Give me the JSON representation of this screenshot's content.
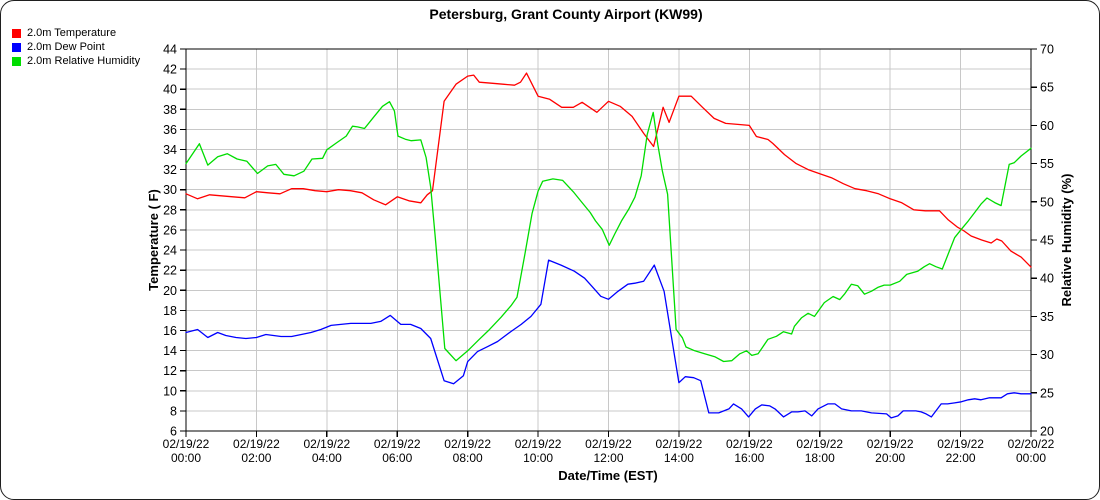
{
  "title": "Petersburg, Grant County Airport (KW99)",
  "legend": {
    "items": [
      {
        "key": "temperature",
        "label": "2.0m Temperature",
        "color": "#ff0000"
      },
      {
        "key": "dew_point",
        "label": "2.0m Dew Point",
        "color": "#0000ff"
      },
      {
        "key": "relative_humidity",
        "label": "2.0m Relative Humidity",
        "color": "#00dd00"
      }
    ]
  },
  "chart_data": {
    "type": "line",
    "title": "Petersburg, Grant County Airport (KW99)",
    "grid": true,
    "legend_position": "top-left",
    "x_axis": {
      "label": "Date/Time (EST)",
      "range_hours": [
        0,
        24
      ],
      "tick_interval_hours": 2,
      "ticks": [
        {
          "date": "02/19/22",
          "time": "00:00"
        },
        {
          "date": "02/19/22",
          "time": "02:00"
        },
        {
          "date": "02/19/22",
          "time": "04:00"
        },
        {
          "date": "02/19/22",
          "time": "06:00"
        },
        {
          "date": "02/19/22",
          "time": "08:00"
        },
        {
          "date": "02/19/22",
          "time": "10:00"
        },
        {
          "date": "02/19/22",
          "time": "12:00"
        },
        {
          "date": "02/19/22",
          "time": "14:00"
        },
        {
          "date": "02/19/22",
          "time": "16:00"
        },
        {
          "date": "02/19/22",
          "time": "18:00"
        },
        {
          "date": "02/19/22",
          "time": "20:00"
        },
        {
          "date": "02/19/22",
          "time": "22:00"
        },
        {
          "date": "02/20/22",
          "time": "00:00"
        }
      ]
    },
    "y_left": {
      "label": "Temperature ( F)",
      "min": 6,
      "max": 44,
      "tick_step": 2
    },
    "y_right": {
      "label": "Relative Humidity (%)",
      "min": 20,
      "max": 70,
      "tick_step": 5
    },
    "grid_color": "#c8c8c8",
    "frame_color": "#000000",
    "series": [
      {
        "key": "temperature",
        "name": "2.0m Temperature",
        "axis": "left",
        "color": "#ff0000",
        "unit": "F",
        "points": [
          [
            0,
            29.6
          ],
          [
            0.33,
            29.1
          ],
          [
            0.67,
            29.5
          ],
          [
            1,
            29.4
          ],
          [
            1.33,
            29.3
          ],
          [
            1.67,
            29.2
          ],
          [
            2,
            29.8
          ],
          [
            2.33,
            29.7
          ],
          [
            2.67,
            29.6
          ],
          [
            3,
            30.1
          ],
          [
            3.33,
            30.1
          ],
          [
            3.67,
            29.9
          ],
          [
            4,
            29.8
          ],
          [
            4.33,
            30
          ],
          [
            4.67,
            29.9
          ],
          [
            5,
            29.7
          ],
          [
            5.33,
            29
          ],
          [
            5.67,
            28.5
          ],
          [
            6,
            29.3
          ],
          [
            6.33,
            28.9
          ],
          [
            6.67,
            28.7
          ],
          [
            6.85,
            29.5
          ],
          [
            7,
            29.9
          ],
          [
            7.33,
            38.8
          ],
          [
            7.67,
            40.5
          ],
          [
            8,
            41.3
          ],
          [
            8.17,
            41.4
          ],
          [
            8.33,
            40.7
          ],
          [
            8.67,
            40.6
          ],
          [
            9,
            40.5
          ],
          [
            9.33,
            40.4
          ],
          [
            9.5,
            40.7
          ],
          [
            9.67,
            41.6
          ],
          [
            10,
            39.3
          ],
          [
            10.33,
            39
          ],
          [
            10.67,
            38.2
          ],
          [
            11,
            38.2
          ],
          [
            11.25,
            38.7
          ],
          [
            11.67,
            37.7
          ],
          [
            12,
            38.8
          ],
          [
            12.33,
            38.3
          ],
          [
            12.67,
            37.3
          ],
          [
            13,
            35.6
          ],
          [
            13.28,
            34.3
          ],
          [
            13.55,
            38.2
          ],
          [
            13.72,
            36.7
          ],
          [
            14,
            39.3
          ],
          [
            14.35,
            39.3
          ],
          [
            14.67,
            38.2
          ],
          [
            15,
            37.1
          ],
          [
            15.33,
            36.6
          ],
          [
            15.67,
            36.5
          ],
          [
            16,
            36.4
          ],
          [
            16.2,
            35.3
          ],
          [
            16.53,
            35
          ],
          [
            16.67,
            34.6
          ],
          [
            17,
            33.5
          ],
          [
            17.33,
            32.6
          ],
          [
            17.67,
            32
          ],
          [
            18,
            31.6
          ],
          [
            18.33,
            31.2
          ],
          [
            18.67,
            30.6
          ],
          [
            19,
            30.1
          ],
          [
            19.33,
            29.9
          ],
          [
            19.67,
            29.6
          ],
          [
            20,
            29.1
          ],
          [
            20.33,
            28.7
          ],
          [
            20.67,
            28
          ],
          [
            21,
            27.9
          ],
          [
            21.4,
            27.9
          ],
          [
            21.65,
            27
          ],
          [
            21.9,
            26.3
          ],
          [
            22.1,
            25.9
          ],
          [
            22.3,
            25.4
          ],
          [
            22.6,
            25
          ],
          [
            22.87,
            24.7
          ],
          [
            23.03,
            25.1
          ],
          [
            23.17,
            24.9
          ],
          [
            23.43,
            23.9
          ],
          [
            23.72,
            23.3
          ],
          [
            24,
            22.3
          ]
        ]
      },
      {
        "key": "dew_point",
        "name": "2.0m Dew Point",
        "axis": "left",
        "color": "#0000ff",
        "unit": "F",
        "points": [
          [
            0,
            15.8
          ],
          [
            0.33,
            16.1
          ],
          [
            0.62,
            15.3
          ],
          [
            0.9,
            15.8
          ],
          [
            1.13,
            15.5
          ],
          [
            1.42,
            15.3
          ],
          [
            1.7,
            15.2
          ],
          [
            2,
            15.3
          ],
          [
            2.27,
            15.6
          ],
          [
            2.7,
            15.4
          ],
          [
            3,
            15.4
          ],
          [
            3.55,
            15.8
          ],
          [
            3.83,
            16.1
          ],
          [
            4.12,
            16.5
          ],
          [
            4.4,
            16.6
          ],
          [
            4.68,
            16.7
          ],
          [
            5.25,
            16.7
          ],
          [
            5.53,
            16.9
          ],
          [
            5.8,
            17.5
          ],
          [
            6.1,
            16.6
          ],
          [
            6.38,
            16.6
          ],
          [
            6.67,
            16.2
          ],
          [
            6.95,
            15.2
          ],
          [
            7.33,
            11
          ],
          [
            7.6,
            10.7
          ],
          [
            7.88,
            11.5
          ],
          [
            8,
            12.9
          ],
          [
            8.28,
            13.9
          ],
          [
            8.57,
            14.4
          ],
          [
            8.85,
            14.9
          ],
          [
            9.23,
            15.9
          ],
          [
            9.52,
            16.6
          ],
          [
            9.8,
            17.4
          ],
          [
            10.08,
            18.6
          ],
          [
            10.3,
            23
          ],
          [
            10.65,
            22.5
          ],
          [
            11.03,
            21.9
          ],
          [
            11.32,
            21.2
          ],
          [
            11.55,
            20.3
          ],
          [
            11.78,
            19.4
          ],
          [
            12,
            19.1
          ],
          [
            12.27,
            19.9
          ],
          [
            12.55,
            20.6
          ],
          [
            12.75,
            20.7
          ],
          [
            13,
            20.9
          ],
          [
            13.3,
            22.5
          ],
          [
            13.58,
            19.9
          ],
          [
            14,
            10.8
          ],
          [
            14.18,
            11.4
          ],
          [
            14.42,
            11.3
          ],
          [
            14.62,
            11
          ],
          [
            14.85,
            7.8
          ],
          [
            15.13,
            7.8
          ],
          [
            15.42,
            8.2
          ],
          [
            15.55,
            8.7
          ],
          [
            15.78,
            8.2
          ],
          [
            15.98,
            7.4
          ],
          [
            16.17,
            8.2
          ],
          [
            16.35,
            8.6
          ],
          [
            16.58,
            8.5
          ],
          [
            16.73,
            8.2
          ],
          [
            16.97,
            7.4
          ],
          [
            17.2,
            7.9
          ],
          [
            17.38,
            7.9
          ],
          [
            17.58,
            8
          ],
          [
            17.77,
            7.5
          ],
          [
            17.95,
            8.2
          ],
          [
            18.23,
            8.7
          ],
          [
            18.43,
            8.7
          ],
          [
            18.62,
            8.2
          ],
          [
            18.9,
            8
          ],
          [
            19.18,
            8
          ],
          [
            19.47,
            7.8
          ],
          [
            19.9,
            7.7
          ],
          [
            20.03,
            7.3
          ],
          [
            20.22,
            7.5
          ],
          [
            20.37,
            8
          ],
          [
            20.73,
            8
          ],
          [
            20.88,
            7.9
          ],
          [
            21.02,
            7.7
          ],
          [
            21.17,
            7.4
          ],
          [
            21.45,
            8.7
          ],
          [
            21.63,
            8.7
          ],
          [
            21.83,
            8.8
          ],
          [
            22.02,
            8.9
          ],
          [
            22.22,
            9.1
          ],
          [
            22.4,
            9.2
          ],
          [
            22.58,
            9.1
          ],
          [
            22.82,
            9.3
          ],
          [
            23.15,
            9.3
          ],
          [
            23.33,
            9.7
          ],
          [
            23.52,
            9.8
          ],
          [
            23.72,
            9.7
          ],
          [
            24,
            9.7
          ]
        ]
      },
      {
        "key": "relative_humidity",
        "name": "2.0m Relative Humidity",
        "axis": "right",
        "color": "#00dd00",
        "unit": "%",
        "points": [
          [
            0,
            55
          ],
          [
            0.38,
            57.6
          ],
          [
            0.62,
            54.8
          ],
          [
            0.9,
            55.9
          ],
          [
            1.17,
            56.3
          ],
          [
            1.45,
            55.6
          ],
          [
            1.73,
            55.3
          ],
          [
            2.03,
            53.7
          ],
          [
            2.32,
            54.7
          ],
          [
            2.55,
            54.9
          ],
          [
            2.78,
            53.6
          ],
          [
            3.07,
            53.4
          ],
          [
            3.35,
            54
          ],
          [
            3.58,
            55.6
          ],
          [
            3.88,
            55.7
          ],
          [
            4,
            56.8
          ],
          [
            4.27,
            57.7
          ],
          [
            4.55,
            58.6
          ],
          [
            4.73,
            59.9
          ],
          [
            4.87,
            59.8
          ],
          [
            5.07,
            59.6
          ],
          [
            5.35,
            61.2
          ],
          [
            5.58,
            62.5
          ],
          [
            5.78,
            63.1
          ],
          [
            5.92,
            61.9
          ],
          [
            6.02,
            58.6
          ],
          [
            6.23,
            58.2
          ],
          [
            6.4,
            58
          ],
          [
            6.67,
            58.1
          ],
          [
            6.82,
            55.8
          ],
          [
            6.95,
            51.9
          ],
          [
            7.08,
            45.3
          ],
          [
            7.35,
            30.8
          ],
          [
            7.67,
            29.2
          ],
          [
            8,
            30.5
          ],
          [
            8.33,
            32
          ],
          [
            8.58,
            33.1
          ],
          [
            8.95,
            34.9
          ],
          [
            9.23,
            36.4
          ],
          [
            9.4,
            37.5
          ],
          [
            9.62,
            43
          ],
          [
            9.83,
            48.5
          ],
          [
            10,
            51.4
          ],
          [
            10.13,
            52.7
          ],
          [
            10.42,
            53
          ],
          [
            10.7,
            52.8
          ],
          [
            11.02,
            51.2
          ],
          [
            11.25,
            49.9
          ],
          [
            11.48,
            48.6
          ],
          [
            11.63,
            47.5
          ],
          [
            11.82,
            46.4
          ],
          [
            12.02,
            44.3
          ],
          [
            12.18,
            45.8
          ],
          [
            12.37,
            47.5
          ],
          [
            12.57,
            49
          ],
          [
            12.75,
            50.6
          ],
          [
            12.93,
            53.4
          ],
          [
            13.1,
            58.8
          ],
          [
            13.27,
            61.7
          ],
          [
            13.4,
            57.5
          ],
          [
            13.53,
            54
          ],
          [
            13.68,
            51
          ],
          [
            13.92,
            33.3
          ],
          [
            14.1,
            32.2
          ],
          [
            14.2,
            31
          ],
          [
            14.45,
            30.5
          ],
          [
            14.73,
            30.1
          ],
          [
            15.03,
            29.7
          ],
          [
            15.27,
            29.1
          ],
          [
            15.5,
            29.2
          ],
          [
            15.73,
            30.1
          ],
          [
            15.92,
            30.5
          ],
          [
            16.07,
            29.9
          ],
          [
            16.25,
            30.1
          ],
          [
            16.53,
            32
          ],
          [
            16.77,
            32.4
          ],
          [
            16.97,
            33
          ],
          [
            17.2,
            32.7
          ],
          [
            17.28,
            33.7
          ],
          [
            17.48,
            34.8
          ],
          [
            17.67,
            35.4
          ],
          [
            17.85,
            35
          ],
          [
            18.13,
            36.8
          ],
          [
            18.38,
            37.6
          ],
          [
            18.57,
            37.2
          ],
          [
            18.7,
            37.9
          ],
          [
            18.9,
            39.2
          ],
          [
            19.08,
            39
          ],
          [
            19.27,
            37.9
          ],
          [
            19.47,
            38.3
          ],
          [
            19.65,
            38.8
          ],
          [
            19.83,
            39.1
          ],
          [
            20,
            39.1
          ],
          [
            20.27,
            39.6
          ],
          [
            20.47,
            40.5
          ],
          [
            20.78,
            40.9
          ],
          [
            20.97,
            41.5
          ],
          [
            21.12,
            41.9
          ],
          [
            21.3,
            41.5
          ],
          [
            21.48,
            41.2
          ],
          [
            21.83,
            45.3
          ],
          [
            22.02,
            46.4
          ],
          [
            22.22,
            47.5
          ],
          [
            22.4,
            48.6
          ],
          [
            22.58,
            49.7
          ],
          [
            22.75,
            50.5
          ],
          [
            22.97,
            49.9
          ],
          [
            23.15,
            49.5
          ],
          [
            23.38,
            54.9
          ],
          [
            23.52,
            55.1
          ],
          [
            23.72,
            56
          ],
          [
            24,
            57
          ]
        ]
      }
    ]
  }
}
